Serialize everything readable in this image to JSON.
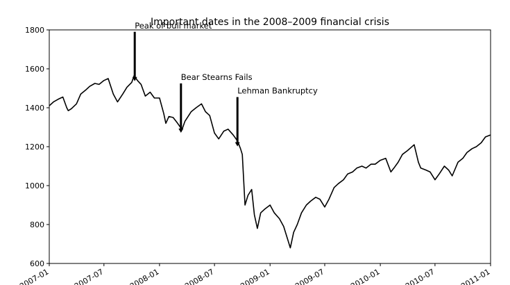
{
  "chart_data": {
    "type": "line",
    "title": "Important dates in the 2008–2009 financial crisis",
    "xlabel": "",
    "ylabel": "",
    "xlim": [
      "2007-01-01",
      "2011-01-01"
    ],
    "ylim": [
      600,
      1800
    ],
    "grid": false,
    "x_ticks": [
      "2007-01",
      "2007-07",
      "2008-01",
      "2008-07",
      "2009-01",
      "2009-07",
      "2010-01",
      "2010-07",
      "2011-01"
    ],
    "y_ticks": [
      600,
      800,
      1000,
      1200,
      1400,
      1600,
      1800
    ],
    "series": [
      {
        "color": "#000000",
        "x": [
          "2007-01-01",
          "2007-01-15",
          "2007-02-01",
          "2007-02-15",
          "2007-02-28",
          "2007-03-05",
          "2007-03-15",
          "2007-04-01",
          "2007-04-15",
          "2007-05-01",
          "2007-05-15",
          "2007-06-01",
          "2007-06-15",
          "2007-07-01",
          "2007-07-15",
          "2007-08-01",
          "2007-08-15",
          "2007-09-01",
          "2007-09-15",
          "2007-10-01",
          "2007-10-09",
          "2007-10-20",
          "2007-11-01",
          "2007-11-15",
          "2007-12-01",
          "2007-12-15",
          "2008-01-01",
          "2008-01-15",
          "2008-01-22",
          "2008-02-01",
          "2008-02-15",
          "2008-03-01",
          "2008-03-10",
          "2008-03-16",
          "2008-03-25",
          "2008-04-15",
          "2008-05-01",
          "2008-05-19",
          "2008-06-01",
          "2008-06-15",
          "2008-07-01",
          "2008-07-15",
          "2008-08-01",
          "2008-08-15",
          "2008-09-01",
          "2008-09-15",
          "2008-09-25",
          "2008-10-01",
          "2008-10-10",
          "2008-10-20",
          "2008-11-01",
          "2008-11-10",
          "2008-11-20",
          "2008-12-01",
          "2008-12-15",
          "2009-01-01",
          "2009-01-15",
          "2009-02-01",
          "2009-02-15",
          "2009-03-01",
          "2009-03-09",
          "2009-03-20",
          "2009-04-01",
          "2009-04-15",
          "2009-05-01",
          "2009-05-15",
          "2009-06-01",
          "2009-06-15",
          "2009-07-01",
          "2009-07-15",
          "2009-08-01",
          "2009-08-15",
          "2009-09-01",
          "2009-09-15",
          "2009-10-01",
          "2009-10-15",
          "2009-11-01",
          "2009-11-15",
          "2009-12-01",
          "2009-12-15",
          "2010-01-01",
          "2010-01-19",
          "2010-02-05",
          "2010-02-15",
          "2010-03-01",
          "2010-03-15",
          "2010-04-01",
          "2010-04-23",
          "2010-05-07",
          "2010-05-15",
          "2010-06-01",
          "2010-06-15",
          "2010-07-01",
          "2010-07-15",
          "2010-08-01",
          "2010-08-15",
          "2010-08-27",
          "2010-09-15",
          "2010-10-01",
          "2010-10-15",
          "2010-11-01",
          "2010-11-15",
          "2010-12-01",
          "2010-12-15",
          "2010-12-31"
        ],
        "values": [
          1410,
          1430,
          1445,
          1455,
          1400,
          1385,
          1395,
          1420,
          1470,
          1490,
          1510,
          1525,
          1520,
          1540,
          1550,
          1470,
          1430,
          1470,
          1505,
          1530,
          1565,
          1540,
          1520,
          1460,
          1480,
          1450,
          1450,
          1370,
          1320,
          1355,
          1350,
          1320,
          1300,
          1290,
          1330,
          1380,
          1400,
          1420,
          1380,
          1360,
          1270,
          1240,
          1280,
          1290,
          1260,
          1230,
          1190,
          1160,
          900,
          950,
          980,
          850,
          780,
          860,
          880,
          900,
          860,
          830,
          790,
          720,
          680,
          760,
          800,
          860,
          900,
          920,
          940,
          930,
          890,
          930,
          990,
          1010,
          1030,
          1060,
          1070,
          1090,
          1100,
          1090,
          1110,
          1110,
          1130,
          1140,
          1070,
          1090,
          1120,
          1160,
          1180,
          1210,
          1120,
          1090,
          1080,
          1070,
          1030,
          1060,
          1100,
          1080,
          1050,
          1120,
          1140,
          1170,
          1190,
          1200,
          1220,
          1250,
          1260
        ]
      }
    ],
    "annotations": [
      {
        "label": "Peak of bull market",
        "date": "2007-10-11",
        "y": 1565
      },
      {
        "label": "Bear Stearns Fails",
        "date": "2008-03-12",
        "y": 1300
      },
      {
        "label": "Lehman Bankruptcy",
        "date": "2008-09-15",
        "y": 1230
      }
    ]
  }
}
